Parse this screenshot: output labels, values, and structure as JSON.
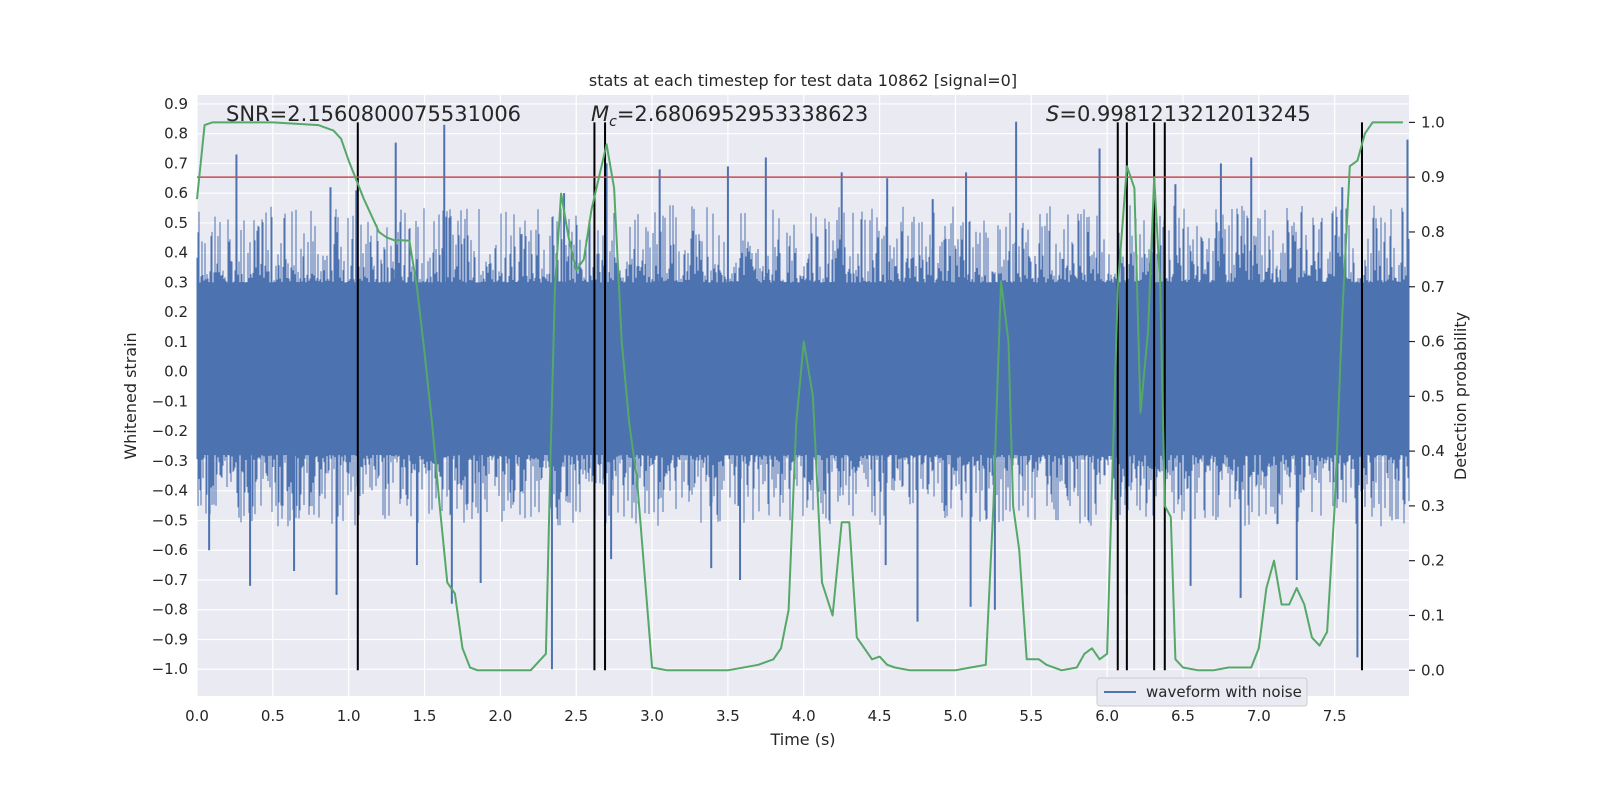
{
  "chart_data": {
    "type": "line",
    "title": "stats at each timestep for test data 10862 [signal=0]",
    "xlabel": "Time (s)",
    "ylabel_left": "Whitened strain",
    "ylabel_right": "Detection probability",
    "xlim": [
      0.0,
      7.99
    ],
    "ylim_left": [
      -1.09,
      0.93
    ],
    "ylim_right": [
      -0.047,
      1.05
    ],
    "x_ticks": [
      "0.0",
      "0.5",
      "1.0",
      "1.5",
      "2.0",
      "2.5",
      "3.0",
      "3.5",
      "4.0",
      "4.5",
      "5.0",
      "5.5",
      "6.0",
      "6.5",
      "7.0",
      "7.5"
    ],
    "y_left_ticks": [
      "0.9",
      "0.8",
      "0.7",
      "0.6",
      "0.5",
      "0.4",
      "0.3",
      "0.2",
      "0.1",
      "0.0",
      "−0.1",
      "−0.2",
      "−0.3",
      "−0.4",
      "−0.5",
      "−0.6",
      "−0.7",
      "−0.8",
      "−0.9",
      "−1.0"
    ],
    "y_right_ticks": [
      "0.0",
      "0.1",
      "0.2",
      "0.3",
      "0.4",
      "0.5",
      "0.6",
      "0.7",
      "0.8",
      "0.9",
      "1.0"
    ],
    "grid": true,
    "legend": {
      "location": "lower-right",
      "entries": [
        "waveform with noise"
      ]
    },
    "annotations": {
      "snr": "SNR=2.1560800075531006",
      "mc_symbol": "M",
      "mc_sub": "c",
      "mc_value": "=2.6806952953338623",
      "s_symbol": "S",
      "s_value": "=0.9981213212013245"
    },
    "threshold_probability": 0.9,
    "vertical_markers_time": [
      1.06,
      2.62,
      2.69,
      6.07,
      6.13,
      6.31,
      6.38,
      7.68
    ],
    "series": [
      {
        "name": "waveform with noise",
        "axis": "left",
        "color": "#4c72b0",
        "description_values": {
          "typical_range": [
            -0.45,
            0.5
          ],
          "max": 0.84,
          "min": -1.0
        },
        "peaks": [
          [
            0.26,
            0.73
          ],
          [
            0.88,
            0.62
          ],
          [
            1.05,
            0.61
          ],
          [
            1.31,
            0.77
          ],
          [
            1.63,
            0.83
          ],
          [
            2.42,
            0.6
          ],
          [
            2.7,
            0.7
          ],
          [
            3.05,
            0.68
          ],
          [
            3.5,
            0.69
          ],
          [
            3.75,
            0.72
          ],
          [
            4.25,
            0.67
          ],
          [
            4.55,
            0.65
          ],
          [
            4.85,
            0.58
          ],
          [
            5.07,
            0.67
          ],
          [
            5.4,
            0.84
          ],
          [
            5.95,
            0.75
          ],
          [
            6.45,
            0.63
          ],
          [
            6.75,
            0.7
          ],
          [
            6.95,
            0.72
          ],
          [
            7.55,
            0.62
          ],
          [
            7.98,
            0.78
          ]
        ],
        "troughs": [
          [
            0.08,
            -0.6
          ],
          [
            0.35,
            -0.72
          ],
          [
            0.64,
            -0.67
          ],
          [
            0.92,
            -0.75
          ],
          [
            1.45,
            -0.65
          ],
          [
            1.68,
            -0.78
          ],
          [
            1.87,
            -0.71
          ],
          [
            2.34,
            -1.0
          ],
          [
            2.73,
            -0.63
          ],
          [
            3.39,
            -0.66
          ],
          [
            3.58,
            -0.7
          ],
          [
            4.54,
            -0.65
          ],
          [
            4.75,
            -0.84
          ],
          [
            5.1,
            -0.79
          ],
          [
            5.26,
            -0.8
          ],
          [
            6.13,
            -0.75
          ],
          [
            6.55,
            -0.72
          ],
          [
            6.88,
            -0.76
          ],
          [
            7.25,
            -0.7
          ],
          [
            7.65,
            -0.96
          ]
        ]
      },
      {
        "name": "",
        "axis": "right",
        "color": "#55a868",
        "x": [
          0.0,
          0.05,
          0.1,
          0.5,
          0.8,
          0.9,
          0.95,
          1.0,
          1.1,
          1.2,
          1.25,
          1.3,
          1.35,
          1.4,
          1.45,
          1.5,
          1.55,
          1.6,
          1.65,
          1.7,
          1.75,
          1.8,
          1.85,
          1.9,
          2.0,
          2.2,
          2.3,
          2.33,
          2.36,
          2.4,
          2.45,
          2.5,
          2.55,
          2.6,
          2.65,
          2.7,
          2.75,
          2.8,
          2.85,
          2.9,
          3.0,
          3.1,
          3.5,
          3.7,
          3.8,
          3.85,
          3.9,
          3.95,
          4.0,
          4.06,
          4.12,
          4.19,
          4.25,
          4.3,
          4.35,
          4.4,
          4.45,
          4.5,
          4.55,
          4.6,
          4.7,
          4.8,
          4.9,
          5.0,
          5.1,
          5.2,
          5.25,
          5.3,
          5.35,
          5.38,
          5.42,
          5.47,
          5.55,
          5.6,
          5.7,
          5.8,
          5.85,
          5.9,
          5.95,
          6.0,
          6.07,
          6.13,
          6.18,
          6.22,
          6.27,
          6.31,
          6.35,
          6.38,
          6.42,
          6.45,
          6.5,
          6.6,
          6.7,
          6.8,
          6.9,
          6.95,
          7.0,
          7.05,
          7.1,
          7.15,
          7.2,
          7.25,
          7.3,
          7.35,
          7.4,
          7.45,
          7.5,
          7.55,
          7.6,
          7.65,
          7.7,
          7.75,
          7.8,
          7.85,
          7.9,
          7.95
        ],
        "values": [
          0.86,
          0.995,
          1.0,
          1.0,
          0.995,
          0.985,
          0.97,
          0.93,
          0.86,
          0.8,
          0.79,
          0.785,
          0.785,
          0.784,
          0.7,
          0.58,
          0.45,
          0.3,
          0.16,
          0.14,
          0.04,
          0.005,
          0.0,
          0.0,
          0.0,
          0.0,
          0.03,
          0.38,
          0.7,
          0.87,
          0.79,
          0.73,
          0.75,
          0.84,
          0.9,
          0.96,
          0.88,
          0.6,
          0.45,
          0.35,
          0.005,
          0.0,
          0.0,
          0.01,
          0.02,
          0.04,
          0.11,
          0.45,
          0.6,
          0.5,
          0.16,
          0.1,
          0.27,
          0.27,
          0.06,
          0.04,
          0.02,
          0.025,
          0.01,
          0.005,
          0.0,
          0.0,
          0.0,
          0.0,
          0.005,
          0.01,
          0.3,
          0.71,
          0.6,
          0.3,
          0.22,
          0.02,
          0.02,
          0.01,
          0.0,
          0.005,
          0.03,
          0.04,
          0.02,
          0.03,
          0.7,
          0.92,
          0.88,
          0.47,
          0.62,
          0.9,
          0.7,
          0.3,
          0.28,
          0.02,
          0.005,
          0.0,
          0.0,
          0.005,
          0.005,
          0.005,
          0.04,
          0.15,
          0.2,
          0.12,
          0.12,
          0.15,
          0.12,
          0.06,
          0.045,
          0.07,
          0.3,
          0.65,
          0.92,
          0.93,
          0.98,
          1.0,
          1.0,
          1.0,
          1.0,
          1.0
        ]
      },
      {
        "name": "",
        "axis": "right",
        "color": "#c44e52",
        "type": "hline",
        "value": 0.9
      }
    ]
  }
}
